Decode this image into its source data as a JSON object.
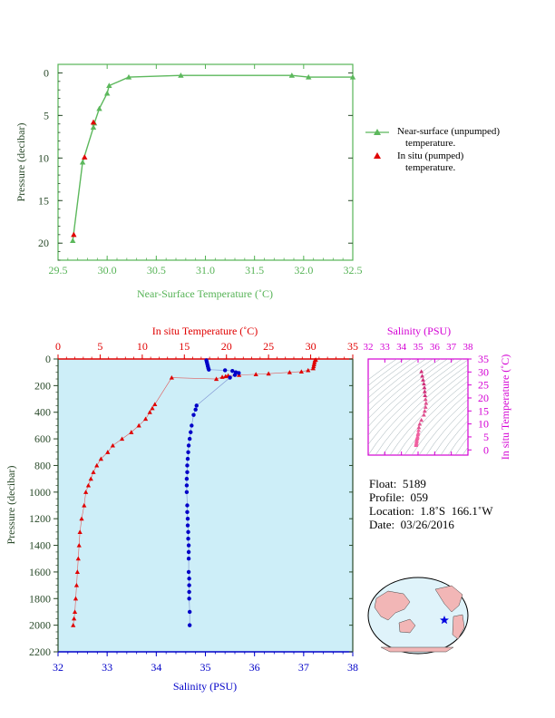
{
  "colors": {
    "green": "#5cb85c",
    "green_axis": "#56b356",
    "red": "#e00000",
    "blue": "#0000c8",
    "magenta": "#d400d4",
    "panel_bg": "#cdeef8",
    "axis_dark": "#2a4a2a"
  },
  "top_chart": {
    "xlabel": "Near-Surface Temperature (˚C)",
    "ylabel": "Pressure (decibar)",
    "x_ticks": [
      "29.5",
      "30.0",
      "30.5",
      "31.0",
      "31.5",
      "32.0",
      "32.5"
    ],
    "y_ticks": [
      "0",
      "5",
      "10",
      "15",
      "20"
    ],
    "legend_unpumped_1": "Near-surface (unpumped)",
    "legend_unpumped_2": "temperature.",
    "legend_insitu_1": "In situ (pumped)",
    "legend_insitu_2": "temperature."
  },
  "main_chart": {
    "top_xlabel": "In situ Temperature (˚C)",
    "bottom_xlabel": "Salinity (PSU)",
    "ylabel": "Pressure (decibar)",
    "temp_ticks": [
      "0",
      "5",
      "10",
      "15",
      "20",
      "25",
      "30",
      "35"
    ],
    "sal_ticks": [
      "32",
      "33",
      "34",
      "35",
      "36",
      "37",
      "38"
    ],
    "pres_ticks": [
      "0",
      "200",
      "400",
      "600",
      "800",
      "1000",
      "1200",
      "1400",
      "1600",
      "1800",
      "2000",
      "2200"
    ]
  },
  "ts_chart": {
    "xlabel": "Salinity (PSU)",
    "ylabel": "In situ Temperature (˚C)",
    "x_ticks": [
      "32",
      "33",
      "34",
      "35",
      "36",
      "37",
      "38"
    ],
    "y_ticks": [
      "0",
      "5",
      "10",
      "15",
      "20",
      "25",
      "30",
      "35"
    ]
  },
  "info": {
    "float": "Float:  5189",
    "profile": "Profile:  059",
    "location": "Location:  1.8˚S  166.1˚W",
    "date": "Date:  03/26/2016"
  },
  "chart_data": [
    {
      "type": "line",
      "name": "near-surface",
      "xlim": [
        29.5,
        32.5
      ],
      "ylim": [
        22,
        -1
      ],
      "series": [
        {
          "name": "Near-surface (unpumped) temperature.",
          "x": [
            32.5,
            32.05,
            31.88,
            30.75,
            30.22,
            30.02,
            30.0,
            29.92,
            29.87,
            29.86,
            29.75,
            29.65
          ],
          "y": [
            0.5,
            0.5,
            0.3,
            0.3,
            0.5,
            1.5,
            2.4,
            4.2,
            5.9,
            6.4,
            10.5,
            19.7
          ]
        },
        {
          "name": "In situ (pumped) temperature.",
          "x": [
            29.86,
            29.77,
            29.66
          ],
          "y": [
            5.8,
            9.9,
            19.0
          ]
        }
      ]
    },
    {
      "type": "line",
      "name": "temperature-profile",
      "xlim": [
        0,
        35
      ],
      "ylim": [
        2200,
        0
      ],
      "series": [
        {
          "name": "In situ Temperature",
          "x": [
            30.6,
            30.5,
            30.45,
            30.4,
            30.35,
            30.3,
            29.7,
            28.9,
            27.5,
            25.0,
            23.5,
            21.5,
            20.2,
            19.9,
            19.5,
            18.8,
            13.5,
            11.5,
            11.2,
            10.9,
            10.4,
            9.6,
            8.7,
            7.6,
            6.5,
            5.9,
            5.1,
            4.6,
            4.2,
            3.9,
            3.6,
            3.3,
            3.1,
            2.8,
            2.6,
            2.5,
            2.4,
            2.3,
            2.2,
            2.1,
            2.0,
            1.9,
            1.8
          ],
          "y": [
            5,
            10,
            25,
            40,
            55,
            70,
            85,
            95,
            100,
            110,
            115,
            120,
            125,
            130,
            135,
            150,
            140,
            340,
            370,
            400,
            450,
            500,
            550,
            600,
            650,
            700,
            750,
            800,
            850,
            900,
            950,
            1000,
            1100,
            1200,
            1300,
            1400,
            1500,
            1600,
            1700,
            1800,
            1900,
            1950,
            2000
          ]
        },
        {
          "name": "Salinity",
          "x": [
            35.02,
            35.03,
            35.04,
            35.05,
            35.06,
            35.07,
            35.4,
            35.55,
            35.62,
            35.68,
            35.6,
            35.5,
            34.82,
            34.8,
            34.76,
            34.72,
            34.7,
            34.68,
            34.66,
            34.65,
            34.64,
            34.63,
            34.63,
            34.62,
            34.62,
            34.62,
            34.63,
            34.63,
            34.64,
            34.64,
            34.65,
            34.65,
            34.66,
            34.66,
            34.66,
            34.66,
            34.67,
            34.67,
            34.67,
            34.67,
            34.68,
            34.68
          ],
          "y": [
            10,
            25,
            40,
            55,
            70,
            80,
            85,
            90,
            100,
            105,
            120,
            140,
            350,
            380,
            420,
            500,
            550,
            600,
            650,
            700,
            750,
            800,
            850,
            900,
            950,
            1000,
            1100,
            1150,
            1200,
            1250,
            1300,
            1350,
            1400,
            1450,
            1500,
            1600,
            1650,
            1700,
            1750,
            1800,
            1900,
            2000
          ]
        }
      ]
    },
    {
      "type": "scatter",
      "name": "t-s-diagram",
      "xlim": [
        32,
        38
      ],
      "ylim": [
        -2,
        35
      ],
      "series": [
        {
          "name": "T-S",
          "x": [
            35.2,
            35.25,
            35.3,
            35.35,
            35.38,
            35.4,
            35.42,
            35.45,
            35.48,
            35.45,
            35.4,
            35.35,
            35.2,
            35.1,
            35.05,
            35.03,
            35.01,
            34.99,
            34.97,
            34.95,
            34.93,
            34.92,
            34.91,
            34.9,
            34.89,
            34.88
          ],
          "y": [
            30.2,
            28.5,
            27,
            25.5,
            24,
            22.5,
            21,
            19.5,
            18,
            16.5,
            15,
            13.5,
            11.5,
            10,
            8.7,
            7.6,
            6.5,
            5.9,
            5.1,
            4.6,
            4.2,
            3.6,
            3.1,
            2.6,
            2.2,
            1.8
          ]
        }
      ]
    }
  ]
}
